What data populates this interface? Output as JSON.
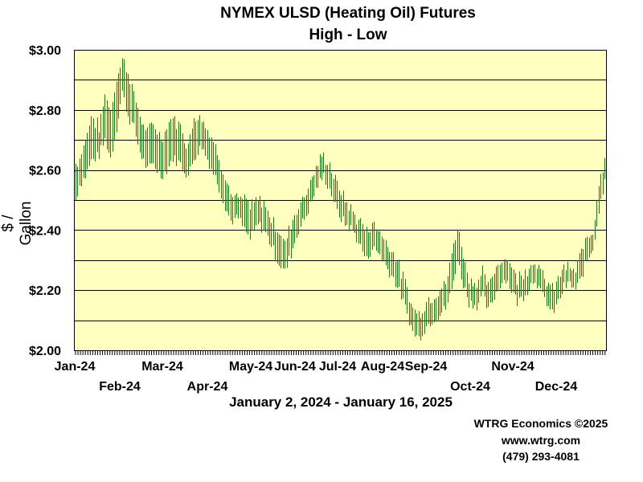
{
  "chart_data": {
    "type": "candlestick-highlow",
    "title": "NYMEX ULSD (Heating Oil) Futures",
    "subtitle": "High - Low",
    "ylabel": "$ / Gallon",
    "date_range": "January 2, 2024 - January 16, 2025",
    "ylim": [
      2.0,
      3.0
    ],
    "yticks": [
      "$2.00",
      "$2.20",
      "$2.40",
      "$2.60",
      "$2.80",
      "$3.00"
    ],
    "ytick_values": [
      2.0,
      2.2,
      2.4,
      2.6,
      2.8,
      3.0
    ],
    "month_labels_row1": [
      "Jan-24",
      "Mar-24",
      "May-24",
      "Jun-24",
      "Jul-24",
      "Aug-24",
      "Sep-24",
      "Nov-24"
    ],
    "month_labels_row2": [
      "Feb-24",
      "Apr-24",
      "Oct-24",
      "Dec-24"
    ],
    "grid": true,
    "colors": {
      "plot_bg": "#ffffc0",
      "bars": "#1a7a1a",
      "grid": "#000000"
    },
    "series": [
      {
        "values": [
          [
            0,
            2.5,
            2.62
          ],
          [
            2,
            2.55,
            2.64
          ],
          [
            5,
            2.58,
            2.7
          ],
          [
            8,
            2.63,
            2.78
          ],
          [
            12,
            2.65,
            2.74
          ],
          [
            15,
            2.7,
            2.85
          ],
          [
            18,
            2.64,
            2.8
          ],
          [
            21,
            2.74,
            2.9
          ],
          [
            24,
            2.86,
            2.97
          ],
          [
            27,
            2.78,
            2.93
          ],
          [
            30,
            2.74,
            2.85
          ],
          [
            33,
            2.66,
            2.78
          ],
          [
            37,
            2.6,
            2.72
          ],
          [
            40,
            2.62,
            2.76
          ],
          [
            44,
            2.58,
            2.7
          ],
          [
            47,
            2.6,
            2.74
          ],
          [
            50,
            2.64,
            2.78
          ],
          [
            54,
            2.62,
            2.74
          ],
          [
            58,
            2.58,
            2.68
          ],
          [
            61,
            2.64,
            2.78
          ],
          [
            65,
            2.68,
            2.78
          ],
          [
            69,
            2.62,
            2.72
          ],
          [
            73,
            2.56,
            2.66
          ],
          [
            77,
            2.48,
            2.58
          ],
          [
            80,
            2.43,
            2.52
          ],
          [
            84,
            2.44,
            2.5
          ],
          [
            87,
            2.4,
            2.5
          ],
          [
            90,
            2.37,
            2.48
          ],
          [
            94,
            2.42,
            2.5
          ],
          [
            97,
            2.4,
            2.49
          ],
          [
            101,
            2.35,
            2.44
          ],
          [
            104,
            2.3,
            2.4
          ],
          [
            108,
            2.26,
            2.36
          ],
          [
            112,
            2.34,
            2.44
          ],
          [
            115,
            2.4,
            2.48
          ],
          [
            119,
            2.45,
            2.53
          ],
          [
            122,
            2.5,
            2.58
          ],
          [
            125,
            2.55,
            2.62
          ],
          [
            128,
            2.58,
            2.65
          ],
          [
            132,
            2.52,
            2.6
          ],
          [
            135,
            2.46,
            2.55
          ],
          [
            139,
            2.42,
            2.5
          ],
          [
            143,
            2.4,
            2.46
          ],
          [
            146,
            2.36,
            2.43
          ],
          [
            150,
            2.3,
            2.4
          ],
          [
            153,
            2.34,
            2.42
          ],
          [
            157,
            2.32,
            2.4
          ],
          [
            160,
            2.28,
            2.36
          ],
          [
            164,
            2.24,
            2.33
          ],
          [
            168,
            2.18,
            2.26
          ],
          [
            171,
            2.12,
            2.2
          ],
          [
            174,
            2.06,
            2.14
          ],
          [
            177,
            2.04,
            2.12
          ],
          [
            181,
            2.08,
            2.16
          ],
          [
            184,
            2.1,
            2.18
          ],
          [
            188,
            2.12,
            2.2
          ],
          [
            191,
            2.14,
            2.22
          ],
          [
            194,
            2.2,
            2.32
          ],
          [
            197,
            2.3,
            2.41
          ],
          [
            200,
            2.22,
            2.32
          ],
          [
            203,
            2.16,
            2.24
          ],
          [
            207,
            2.15,
            2.22
          ],
          [
            210,
            2.18,
            2.26
          ],
          [
            213,
            2.13,
            2.21
          ],
          [
            216,
            2.18,
            2.26
          ],
          [
            219,
            2.22,
            2.3
          ],
          [
            222,
            2.24,
            2.31
          ],
          [
            225,
            2.2,
            2.28
          ],
          [
            228,
            2.16,
            2.24
          ],
          [
            231,
            2.18,
            2.26
          ],
          [
            234,
            2.21,
            2.28
          ],
          [
            237,
            2.24,
            2.3
          ],
          [
            240,
            2.19,
            2.26
          ],
          [
            243,
            2.16,
            2.23
          ],
          [
            246,
            2.12,
            2.2
          ],
          [
            249,
            2.16,
            2.24
          ],
          [
            252,
            2.21,
            2.28
          ],
          [
            255,
            2.22,
            2.27
          ],
          [
            258,
            2.2,
            2.26
          ],
          [
            261,
            2.24,
            2.33
          ],
          [
            264,
            2.3,
            2.38
          ],
          [
            267,
            2.34,
            2.4
          ],
          [
            270,
            2.46,
            2.56
          ],
          [
            273,
            2.57,
            2.64
          ]
        ]
      }
    ]
  },
  "credits": {
    "line1": "WTRG Economics ©2025",
    "line2": "www.wtrg.com",
    "line3": "(479) 293-4081"
  }
}
